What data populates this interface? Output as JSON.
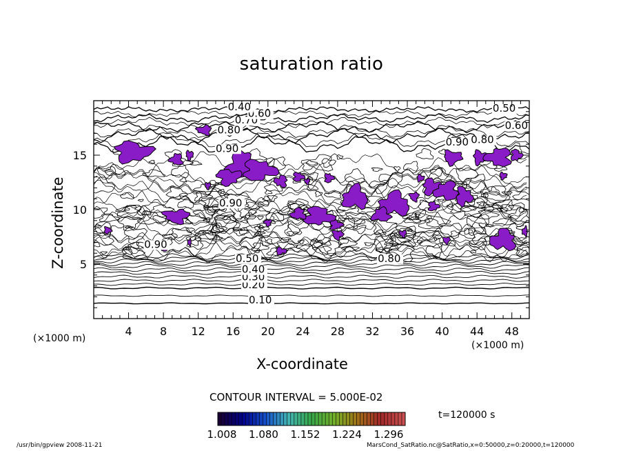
{
  "chart_data": {
    "type": "contour",
    "title": "saturation ratio",
    "xlabel": "X-coordinate",
    "ylabel": "Z-coordinate",
    "x_unit_label": "(×1000 m)",
    "x_unit_label_right": "(×1000 m)",
    "xlim": [
      0,
      50
    ],
    "ylim": [
      0,
      20
    ],
    "xticks": [
      4,
      8,
      12,
      16,
      20,
      24,
      28,
      32,
      36,
      40,
      44,
      48
    ],
    "yticks": [
      5,
      10,
      15
    ],
    "contour_interval_label": "CONTOUR INTERVAL = 5.000E-02",
    "contour_labels": [
      {
        "text": "0.10",
        "x": 17.8,
        "z": 1.4
      },
      {
        "text": "0.20",
        "x": 17.0,
        "z": 2.8
      },
      {
        "text": "0.30",
        "x": 17.0,
        "z": 3.5
      },
      {
        "text": "0.40",
        "x": 17.0,
        "z": 4.2
      },
      {
        "text": "0.50",
        "x": 16.3,
        "z": 5.2
      },
      {
        "text": "0.80",
        "x": 32.6,
        "z": 5.2
      },
      {
        "text": "0.90",
        "x": 5.8,
        "z": 6.5
      },
      {
        "text": "0.90",
        "x": 14.4,
        "z": 10.3
      },
      {
        "text": "0.90",
        "x": 14.0,
        "z": 15.3
      },
      {
        "text": "0.80",
        "x": 14.2,
        "z": 17.0
      },
      {
        "text": "0.70",
        "x": 16.2,
        "z": 17.9
      },
      {
        "text": "0.60",
        "x": 17.7,
        "z": 18.5
      },
      {
        "text": "0.40",
        "x": 15.4,
        "z": 19.1
      },
      {
        "text": "0.50",
        "x": 45.8,
        "z": 19.0
      },
      {
        "text": "0.60",
        "x": 47.2,
        "z": 17.4
      },
      {
        "text": "0.90",
        "x": 40.4,
        "z": 15.9
      },
      {
        "text": "0.80",
        "x": 43.3,
        "z": 16.1
      }
    ],
    "colorbar": {
      "ticks": [
        "1.008",
        "1.080",
        "1.152",
        "1.224",
        "1.296"
      ],
      "colors": [
        "#1a0033",
        "#000088",
        "#1650c8",
        "#44b4b4",
        "#38a848",
        "#74b028",
        "#a07018",
        "#a02828",
        "#c85050"
      ]
    },
    "supersaturated_fill": "#8a1cc8",
    "time_label": "t=120000 s"
  },
  "footer": {
    "left": "/usr/bin/gpview   2008-11-21",
    "right": "MarsCond_SatRatio.nc@SatRatio,x=0:50000,z=0:20000,t=120000"
  }
}
